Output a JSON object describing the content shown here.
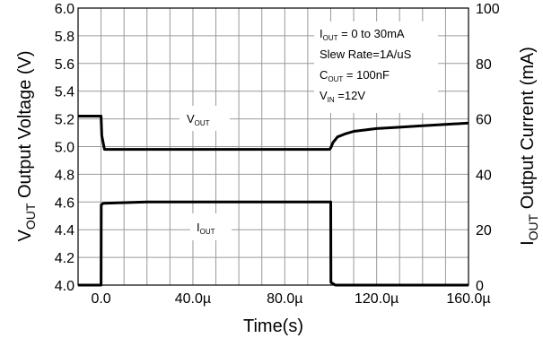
{
  "chart_data": {
    "type": "line",
    "xlabel": "Time(s)",
    "ylabel_left": {
      "main": "V",
      "sub": "OUT",
      "rest": " Output Voltage (V)"
    },
    "ylabel_right": {
      "main": "I",
      "sub": "OUT",
      "rest": " Output Current (mA)"
    },
    "x_ticks": [
      "0.0",
      "40.0µ",
      "80.0µ",
      "120.0µ",
      "160.0µ"
    ],
    "x_tick_values": [
      0,
      40,
      80,
      120,
      160
    ],
    "xlim": [
      -10,
      160
    ],
    "ylim_left": [
      4.0,
      6.0
    ],
    "ylim_right": [
      0,
      100
    ],
    "y_left_ticks": [
      "4.0",
      "4.2",
      "4.4",
      "4.6",
      "4.8",
      "5.0",
      "5.2",
      "5.4",
      "5.6",
      "5.8",
      "6.0"
    ],
    "y_right_ticks": [
      "0",
      "20",
      "40",
      "60",
      "80",
      "100"
    ],
    "grid": true,
    "annotations": [
      {
        "main": "I",
        "sub": "OUT",
        "rest": " = 0 to 30mA"
      },
      {
        "main": "Slew Rate=1A/uS",
        "sub": "",
        "rest": ""
      },
      {
        "main": "C",
        "sub": "OUT",
        "rest": " = 100nF"
      },
      {
        "main": "V",
        "sub": "IN",
        "rest": " =12V"
      }
    ],
    "series": [
      {
        "name": {
          "main": "V",
          "sub": "OUT",
          "rest": ""
        },
        "axis": "left",
        "x": [
          -10,
          0,
          0.3,
          1.5,
          20,
          60,
          99.5,
          100,
          101,
          103,
          106,
          110,
          120,
          130,
          140,
          150,
          160
        ],
        "y": [
          5.22,
          5.22,
          5.08,
          4.98,
          4.98,
          4.98,
          4.98,
          4.99,
          5.03,
          5.07,
          5.09,
          5.11,
          5.13,
          5.14,
          5.15,
          5.16,
          5.17
        ]
      },
      {
        "name": {
          "main": "I",
          "sub": "OUT",
          "rest": ""
        },
        "axis": "right",
        "x": [
          -10,
          0,
          0.1,
          1,
          20,
          60,
          100,
          100.1,
          102,
          160
        ],
        "y": [
          0,
          0,
          29,
          29.5,
          30,
          30,
          30,
          1,
          0,
          0
        ]
      }
    ]
  }
}
